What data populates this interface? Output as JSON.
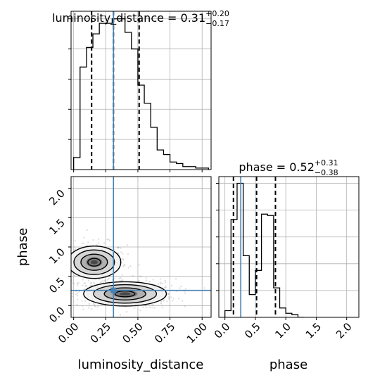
{
  "chart_data": {
    "type": "corner",
    "parameters": [
      "luminosity_distance",
      "phase"
    ],
    "truth": {
      "luminosity_distance": 0.31,
      "phase": 0.26
    },
    "colors": {
      "truth": "#4682b4",
      "hist": "#000000",
      "grid": "#b0b0b0",
      "scatter": "#9a9a9a"
    },
    "grid": true,
    "panels": {
      "luminosity_distance_hist": {
        "title_main": "luminosity_distance = 0.31",
        "title_sup": "+0.20",
        "title_sub": "−0.17",
        "quantiles": [
          0.14,
          0.31,
          0.51
        ],
        "xlim": [
          -0.02,
          1.07
        ],
        "ylim": [
          0,
          1.05
        ],
        "bin_edges": [
          0.0,
          0.05,
          0.1,
          0.15,
          0.2,
          0.25,
          0.3,
          0.35,
          0.4,
          0.45,
          0.5,
          0.55,
          0.6,
          0.65,
          0.7,
          0.75,
          0.8,
          0.85,
          0.9,
          0.95,
          1.0,
          1.05
        ],
        "heights": [
          0.08,
          0.68,
          0.81,
          0.9,
          0.97,
          0.97,
          1.0,
          1.0,
          0.91,
          0.8,
          0.56,
          0.44,
          0.28,
          0.13,
          0.1,
          0.05,
          0.04,
          0.02,
          0.02,
          0.01,
          0.01
        ]
      },
      "phase_hist": {
        "title_main": "phase = 0.52",
        "title_sup": "+0.31",
        "title_sub": "−0.38",
        "quantiles": [
          0.14,
          0.52,
          0.83
        ],
        "xlim": [
          -0.1,
          2.2
        ],
        "ylim": [
          0,
          1.05
        ],
        "bin_edges": [
          0.0,
          0.1,
          0.2,
          0.3,
          0.4,
          0.5,
          0.6,
          0.7,
          0.8,
          0.9,
          1.0,
          1.1,
          1.2,
          1.3
        ],
        "heights": [
          0.05,
          0.73,
          1.0,
          0.46,
          0.17,
          0.35,
          0.77,
          0.76,
          0.22,
          0.07,
          0.03,
          0.02,
          0.0
        ]
      },
      "joint": {
        "xlim": [
          -0.02,
          1.07
        ],
        "ylim": [
          -0.2,
          2.2
        ],
        "modes": [
          {
            "cx": 0.16,
            "cy": 0.74,
            "sx": 0.09,
            "sy": 0.12,
            "n": 380
          },
          {
            "cx": 0.4,
            "cy": 0.2,
            "sx": 0.14,
            "sy": 0.09,
            "n": 520
          }
        ]
      }
    },
    "xticks": {
      "luminosity_distance": [
        "0.00",
        "0.25",
        "0.50",
        "0.75",
        "1.00"
      ],
      "phase": [
        "0.0",
        "0.5",
        "1.0",
        "1.5",
        "2.0"
      ]
    },
    "yticks": {
      "phase": [
        "0.0",
        "0.5",
        "1.0",
        "1.5",
        "2.0"
      ]
    },
    "xlabels": {
      "luminosity_distance": "luminosity_distance",
      "phase": "phase"
    },
    "ylabels": {
      "phase": "phase"
    }
  }
}
